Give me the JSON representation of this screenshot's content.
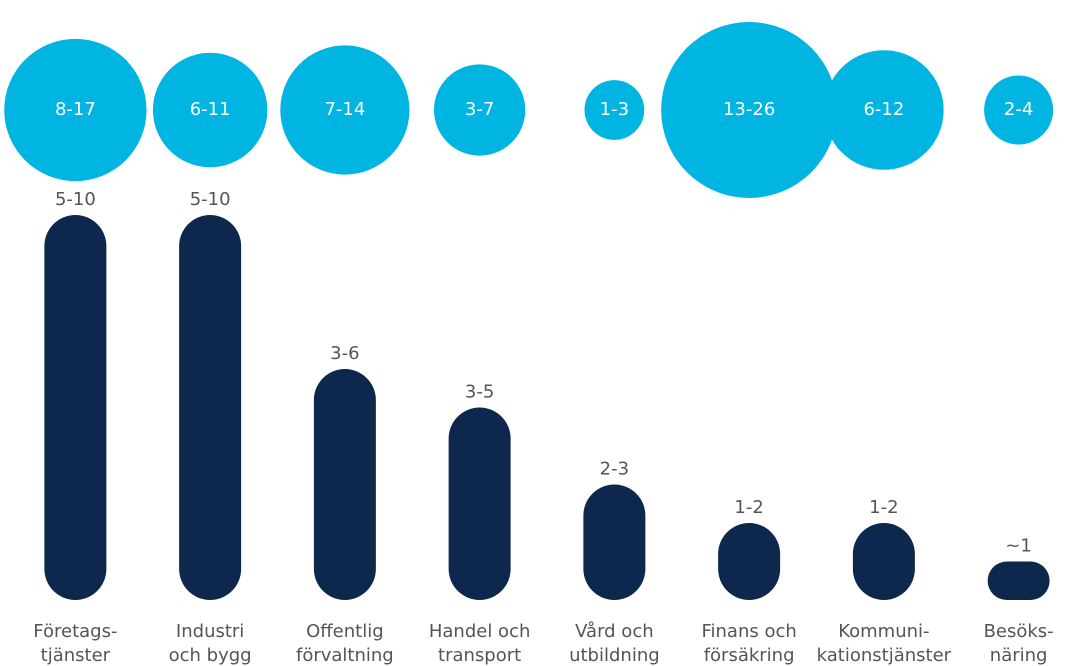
{
  "chart_data": {
    "type": "bar",
    "categories": [
      [
        "Företags-",
        "tjänster"
      ],
      [
        "Industri",
        "och bygg"
      ],
      [
        "Offentlig",
        "förvaltning"
      ],
      [
        "Handel och",
        "transport"
      ],
      [
        "Vård och",
        "utbildning"
      ],
      [
        "Finans och",
        "försäkring"
      ],
      [
        "Kommuni-",
        "kationstjänster"
      ],
      [
        "Besöks-",
        "näring"
      ]
    ],
    "bars": {
      "color": "#0d274d",
      "low": [
        5,
        5,
        3,
        3,
        2,
        1,
        1,
        1
      ],
      "high": [
        10,
        10,
        6,
        5,
        3,
        2,
        2,
        1
      ],
      "value_labels": [
        "5-10",
        "5-10",
        "3-6",
        "3-5",
        "2-3",
        "1-2",
        "1-2",
        "~1"
      ]
    },
    "bubbles": {
      "color": "#00b5e2",
      "low": [
        8,
        6,
        7,
        3,
        1,
        13,
        6,
        2
      ],
      "high": [
        17,
        11,
        14,
        7,
        3,
        26,
        12,
        4
      ],
      "value_labels": [
        "8-17",
        "6-11",
        "7-14",
        "3-7",
        "1-3",
        "13-26",
        "6-12",
        "2-4"
      ]
    }
  }
}
